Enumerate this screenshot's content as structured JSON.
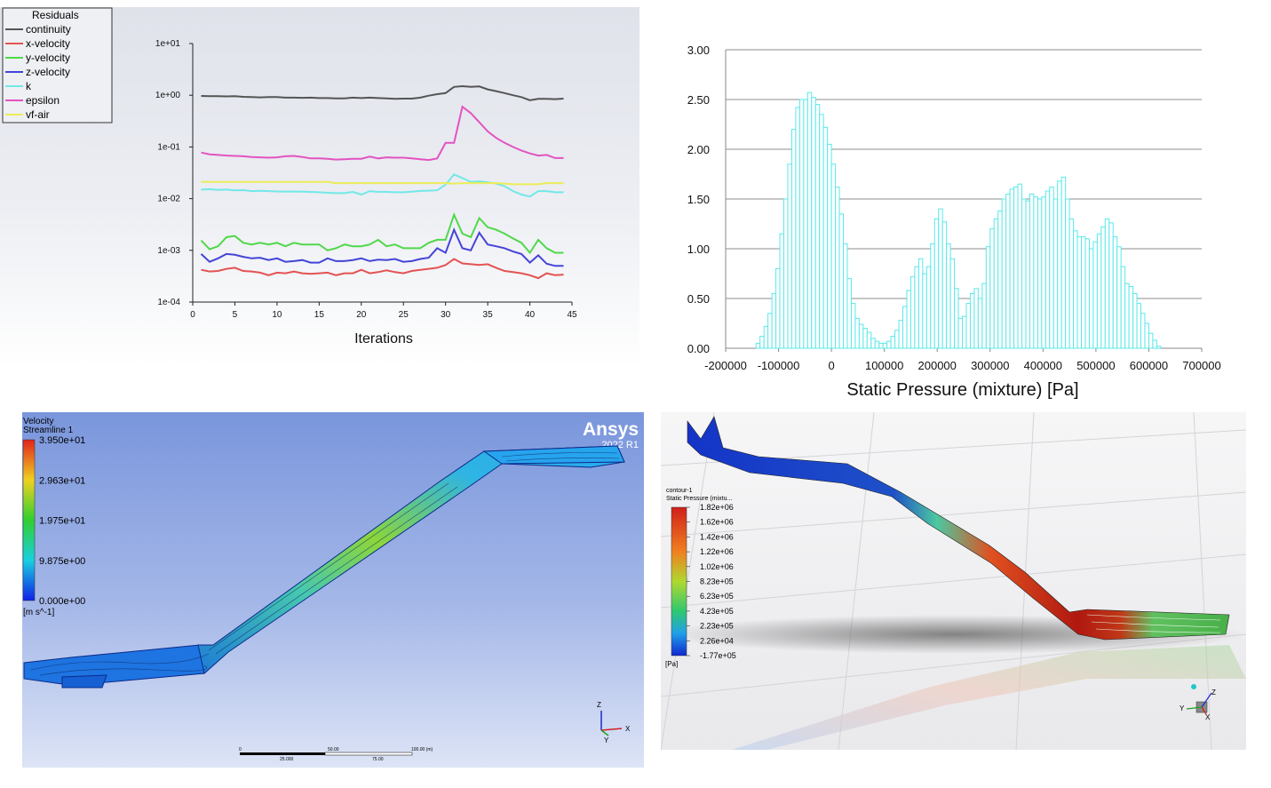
{
  "residuals": {
    "legend_title": "Residuals",
    "xlabel": "Iterations",
    "y_ticks": [
      "1e+01",
      "1e+00",
      "1e-01",
      "1e-02",
      "1e-03",
      "1e-04"
    ],
    "x_ticks": [
      "0",
      "5",
      "10",
      "15",
      "20",
      "25",
      "30",
      "35",
      "40",
      "45"
    ]
  },
  "histogram": {
    "xlabel": "Static Pressure (mixture)  [Pa]",
    "y_ticks": [
      "3.00",
      "2.50",
      "2.00",
      "1.50",
      "1.00",
      "0.50",
      "0.00"
    ],
    "x_ticks": [
      "-200000",
      "-100000",
      "0",
      "100000",
      "200000",
      "300000",
      "400000",
      "500000",
      "600000",
      "700000"
    ]
  },
  "velocity_panel": {
    "title_line1": "Velocity",
    "title_line2": "Streamline 1",
    "brand": "Ansys",
    "version": "2022 R1",
    "colorbar_labels": [
      "3.950e+01",
      "2.963e+01",
      "1.975e+01",
      "9.875e+00",
      "0.000e+00"
    ],
    "unit": "[m s^-1]",
    "scale_top": [
      "0",
      "50.00",
      "100.00 (m)"
    ],
    "scale_bottom": [
      "25.000",
      "75.00"
    ],
    "axis_labels": [
      "Z",
      "X",
      "Y"
    ]
  },
  "pressure_panel": {
    "title_line1": "contour-1",
    "title_line2": "Static Pressure (mixtu...",
    "colorbar_labels": [
      "1.82e+06",
      "1.62e+06",
      "1.42e+06",
      "1.22e+06",
      "1.02e+06",
      "8.23e+05",
      "6.23e+05",
      "4.23e+05",
      "2.23e+05",
      "2.26e+04",
      "-1.77e+05"
    ],
    "unit": "[Pa]",
    "axis_labels": [
      "Z",
      "Y",
      "X"
    ]
  },
  "chart_data": [
    {
      "type": "line",
      "title": "",
      "legend_title": "Residuals",
      "xlabel": "Iterations",
      "ylabel": "",
      "y_scale": "log",
      "xlim": [
        0,
        45
      ],
      "ylim": [
        0.0001,
        10
      ],
      "legend_position": "top-left",
      "x": [
        1,
        2,
        3,
        4,
        5,
        6,
        7,
        8,
        9,
        10,
        11,
        12,
        13,
        14,
        15,
        16,
        17,
        18,
        19,
        20,
        21,
        22,
        23,
        24,
        25,
        26,
        27,
        28,
        29,
        30,
        31,
        32,
        33,
        34,
        35,
        36,
        37,
        38,
        39,
        40,
        41,
        42,
        43,
        44
      ],
      "series": [
        {
          "name": "continuity",
          "color": "#555555",
          "values": [
            0.97,
            0.96,
            0.96,
            0.95,
            0.96,
            0.93,
            0.92,
            0.91,
            0.92,
            0.92,
            0.9,
            0.9,
            0.89,
            0.9,
            0.88,
            0.88,
            0.87,
            0.87,
            0.9,
            0.88,
            0.9,
            0.88,
            0.87,
            0.85,
            0.86,
            0.86,
            0.9,
            0.98,
            1.05,
            1.1,
            1.45,
            1.5,
            1.45,
            1.48,
            1.3,
            1.2,
            1.1,
            1.0,
            0.92,
            0.8,
            0.85,
            0.85,
            0.84,
            0.86
          ]
        },
        {
          "name": "x-velocity",
          "color": "#e35353",
          "values": [
            0.00042,
            0.00039,
            0.0004,
            0.00044,
            0.00046,
            0.0004,
            0.00039,
            0.00037,
            0.00033,
            0.00037,
            0.00036,
            0.00039,
            0.00036,
            0.00035,
            0.00036,
            0.00037,
            0.00033,
            0.00036,
            0.00036,
            0.00042,
            0.00036,
            0.00038,
            0.00041,
            0.00038,
            0.00036,
            0.0004,
            0.00042,
            0.00044,
            0.00046,
            0.00052,
            0.00068,
            0.00056,
            0.00054,
            0.00052,
            0.00054,
            0.00046,
            0.0004,
            0.00038,
            0.00036,
            0.00033,
            0.00029,
            0.00036,
            0.00033,
            0.00034
          ]
        },
        {
          "name": "y-velocity",
          "color": "#50d84a",
          "values": [
            0.00155,
            0.00105,
            0.0012,
            0.0018,
            0.0019,
            0.0014,
            0.0013,
            0.0014,
            0.0013,
            0.0014,
            0.0012,
            0.0014,
            0.0013,
            0.0013,
            0.0013,
            0.001,
            0.0011,
            0.0013,
            0.0012,
            0.0012,
            0.0013,
            0.0016,
            0.0012,
            0.0013,
            0.0011,
            0.0011,
            0.0011,
            0.0014,
            0.0016,
            0.0016,
            0.0049,
            0.0021,
            0.0018,
            0.0042,
            0.0028,
            0.0025,
            0.0021,
            0.0017,
            0.0014,
            0.0009,
            0.0016,
            0.0011,
            0.0009,
            0.0009
          ]
        },
        {
          "name": "z-velocity",
          "color": "#4444d8",
          "values": [
            0.00085,
            0.0006,
            0.0007,
            0.00085,
            0.00082,
            0.00075,
            0.0007,
            0.00072,
            0.00065,
            0.0007,
            0.0006,
            0.00062,
            0.00065,
            0.00058,
            0.00058,
            0.0007,
            0.00062,
            0.00062,
            0.00065,
            0.0007,
            0.00062,
            0.00066,
            0.00065,
            0.00068,
            0.0006,
            0.00062,
            0.00068,
            0.00072,
            0.0011,
            0.0009,
            0.0025,
            0.0011,
            0.001,
            0.0022,
            0.0013,
            0.0012,
            0.0011,
            0.00095,
            0.00085,
            0.00058,
            0.0008,
            0.00055,
            0.0005,
            0.0005
          ]
        },
        {
          "name": "k",
          "color": "#72e8e8",
          "values": [
            0.015,
            0.0152,
            0.0148,
            0.015,
            0.0145,
            0.0146,
            0.014,
            0.0142,
            0.014,
            0.0138,
            0.0137,
            0.0137,
            0.0136,
            0.0135,
            0.0133,
            0.013,
            0.0128,
            0.0128,
            0.0135,
            0.012,
            0.014,
            0.0135,
            0.0135,
            0.0133,
            0.0133,
            0.0136,
            0.0141,
            0.0143,
            0.0145,
            0.0186,
            0.0295,
            0.025,
            0.021,
            0.0215,
            0.0208,
            0.0195,
            0.0175,
            0.014,
            0.012,
            0.011,
            0.014,
            0.014,
            0.0133,
            0.0133
          ]
        },
        {
          "name": "epsilon",
          "color": "#e353c1",
          "values": [
            0.078,
            0.072,
            0.07,
            0.068,
            0.067,
            0.066,
            0.064,
            0.063,
            0.062,
            0.063,
            0.066,
            0.067,
            0.064,
            0.06,
            0.06,
            0.059,
            0.057,
            0.058,
            0.059,
            0.059,
            0.065,
            0.06,
            0.063,
            0.062,
            0.062,
            0.06,
            0.058,
            0.056,
            0.06,
            0.12,
            0.12,
            0.6,
            0.45,
            0.3,
            0.2,
            0.15,
            0.12,
            0.1,
            0.085,
            0.075,
            0.068,
            0.07,
            0.061,
            0.061
          ]
        },
        {
          "name": "vf-air",
          "color": "#ecec5a",
          "values": [
            0.021,
            0.021,
            0.021,
            0.021,
            0.021,
            0.021,
            0.021,
            0.021,
            0.021,
            0.021,
            0.021,
            0.021,
            0.021,
            0.021,
            0.021,
            0.021,
            0.02,
            0.02,
            0.02,
            0.02,
            0.02,
            0.02,
            0.02,
            0.02,
            0.02,
            0.02,
            0.02,
            0.02,
            0.02,
            0.02,
            0.0195,
            0.02,
            0.02,
            0.02,
            0.02,
            0.02,
            0.0195,
            0.019,
            0.019,
            0.019,
            0.019,
            0.02,
            0.02,
            0.02
          ]
        }
      ]
    },
    {
      "type": "bar",
      "title": "",
      "xlabel": "Static Pressure (mixture)  [Pa]",
      "ylabel": "",
      "xlim": [
        -200000,
        700000
      ],
      "ylim": [
        0,
        3
      ],
      "grid": true,
      "bar_color": "#5ae8e8",
      "bin_width": 7500,
      "bin_start": -142500,
      "values": [
        0.05,
        0.12,
        0.22,
        0.35,
        0.55,
        0.8,
        1.15,
        1.5,
        1.85,
        2.2,
        2.42,
        2.5,
        2.5,
        2.57,
        2.52,
        2.45,
        2.35,
        2.22,
        2.05,
        1.85,
        1.62,
        1.35,
        1.05,
        0.7,
        0.45,
        0.3,
        0.24,
        0.2,
        0.16,
        0.1,
        0.07,
        0.05,
        0.05,
        0.07,
        0.12,
        0.18,
        0.28,
        0.42,
        0.58,
        0.72,
        0.82,
        0.9,
        0.75,
        0.82,
        1.05,
        1.3,
        1.4,
        1.27,
        1.05,
        0.9,
        0.6,
        0.3,
        0.32,
        0.45,
        0.55,
        0.6,
        0.5,
        0.65,
        1.02,
        1.2,
        1.3,
        1.38,
        1.5,
        1.55,
        1.6,
        1.62,
        1.65,
        1.5,
        1.48,
        1.55,
        1.52,
        1.5,
        1.52,
        1.58,
        1.62,
        1.5,
        1.68,
        1.72,
        1.5,
        1.3,
        1.18,
        1.12,
        1.12,
        1.1,
        1.0,
        1.07,
        1.15,
        1.22,
        1.3,
        1.26,
        1.12,
        1.02,
        0.82,
        0.65,
        0.62,
        0.55,
        0.45,
        0.35,
        0.25,
        0.15,
        0.08,
        0.02
      ]
    }
  ]
}
